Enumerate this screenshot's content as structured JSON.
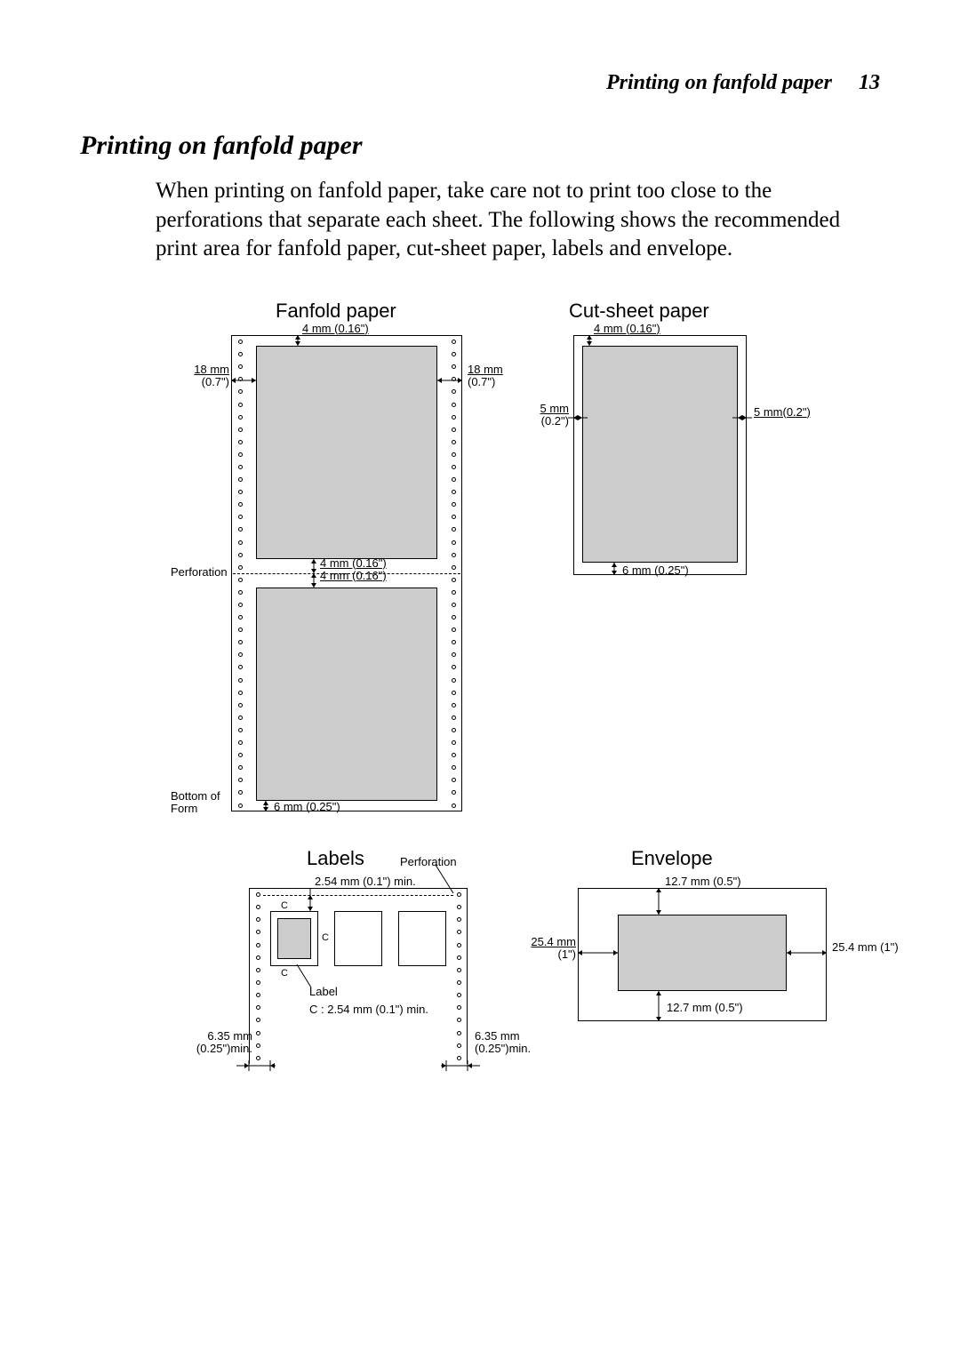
{
  "header": {
    "title": "Printing on fanfold paper",
    "page_num": "13"
  },
  "section_title": "Printing on fanfold paper",
  "body_text": "When printing on fanfold paper, take care not to print too close to the perforations that separate each sheet. The following shows the recommended print area for fanfold paper, cut-sheet paper, labels and envelope.",
  "colors": {
    "bg": "#ffffff",
    "fill": "#cccccc",
    "stroke": "#000000",
    "text": "#000000"
  },
  "fanfold": {
    "title": "Fanfold paper",
    "top_margin": "4 mm (0.16\")",
    "side_margin_val": "18 mm",
    "side_margin_paren": "(0.7\")",
    "perf_label": "Perforation",
    "perf_margin_top": "4 mm (0.16\")",
    "perf_margin_bot": "4 mm (0.16\")",
    "bottom_label_1": "Bottom of",
    "bottom_label_2": "Form",
    "bottom_margin": "6 mm (0.25\")"
  },
  "cutsheet": {
    "title": "Cut-sheet paper",
    "top_margin": "4 mm (0.16\")",
    "left_margin_val": "5 mm",
    "left_margin_paren": "(0.2\")",
    "right_margin": "5 mm(0.2\")",
    "bottom_margin": "6 mm (0.25\")"
  },
  "labels": {
    "title": "Labels",
    "perf_word": "Perforation",
    "top_margin": "2.54 mm (0.1\") min.",
    "c_letter": "C",
    "c_note": "C : 2.54 mm (0.1\") min.",
    "label_word": "Label",
    "side_margin_val": "6.35 mm",
    "side_margin_paren": "(0.25\")min."
  },
  "envelope": {
    "title": "Envelope",
    "top_margin": "12.7 mm (0.5\")",
    "side_margin_val": "25.4 mm",
    "side_margin_paren": "(1\")",
    "right_margin": "25.4 mm (1\")",
    "bottom_margin": "12.7 mm (0.5\")"
  }
}
